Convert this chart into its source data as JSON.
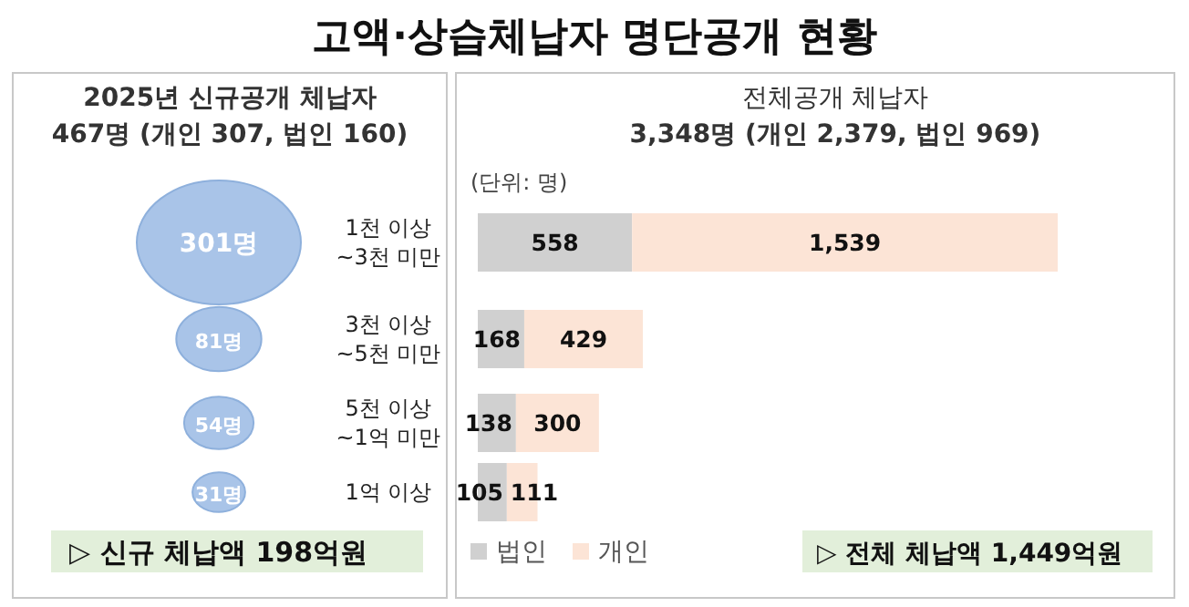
{
  "chart_data": [
    {
      "type": "other",
      "title": "고액·상습체납자 명단공개 현황"
    },
    {
      "type": "other",
      "title": "2025년 신규공개 체납자",
      "subtitle": "467명 (개인 307, 법인 160)",
      "categories": [
        "1천 이상\n~3천 미만",
        "3천 이상\n~5천 미만",
        "5천 이상\n~1억 미만",
        "1억 이상"
      ],
      "values": [
        301,
        81,
        54,
        31
      ],
      "value_labels": [
        "301명",
        "81명",
        "54명",
        "31명"
      ],
      "color": "#a9c4e8",
      "annotations": [
        "▷ 신규 체납액 198억원"
      ]
    },
    {
      "type": "bar",
      "orientation": "horizontal",
      "stacked": true,
      "title": "전체공개 체납자",
      "subtitle": "3,348명 (개인 2,379, 법인 969)",
      "categories": [
        null,
        null,
        null,
        null
      ],
      "series": [
        {
          "name": "법인",
          "color": "#d0d0d0",
          "values": [
            558,
            168,
            138,
            105
          ],
          "value_labels": [
            "558",
            "168",
            "138",
            "105"
          ]
        },
        {
          "name": "개인",
          "color": "#fce4d6",
          "values": [
            1539,
            429,
            300,
            111
          ],
          "value_labels": [
            "1,539",
            "429",
            "300",
            "111"
          ]
        }
      ],
      "legend": "bottom left",
      "annotations": [
        "(단위: 명)",
        "▷ 전체 체납액 1,449억원"
      ]
    }
  ]
}
